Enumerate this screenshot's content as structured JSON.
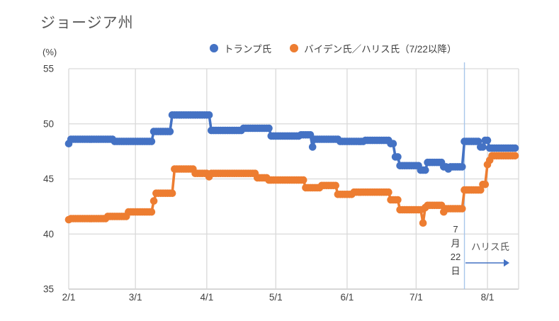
{
  "title": "ジョージア州",
  "y_axis_unit": "(%)",
  "legend": {
    "items": [
      {
        "label": "トランプ氏",
        "color": "#4472C4"
      },
      {
        "label": "バイデン氏／ハリス氏（7/22以降）",
        "color": "#ED7D31"
      }
    ]
  },
  "annotation": {
    "event_date_lines": [
      "7",
      "月",
      "22",
      "日"
    ],
    "label": "ハリス氏",
    "arrow_color": "#4472C4"
  },
  "colors": {
    "trump": "#4472C4",
    "biden_harris": "#ED7D31",
    "gridline": "#D9D9D9",
    "axis_line": "#BFBFBF",
    "event_line": "#A8C6EA",
    "tick_text": "#404040",
    "title_text": "#595959"
  },
  "chart_data": {
    "type": "line",
    "title": "ジョージア州",
    "ylabel": "(%)",
    "grid": true,
    "legend_position": "top",
    "y_axis": {
      "ticks": [
        35,
        40,
        45,
        50,
        55
      ],
      "range": [
        35,
        55
      ],
      "unit": "%"
    },
    "x_axis": {
      "tick_labels": [
        "2/1",
        "3/1",
        "4/1",
        "5/1",
        "6/1",
        "7/1",
        "8/1"
      ],
      "start_date": "2/1",
      "end_date": "8/13",
      "month_start_days": [
        0,
        29,
        60,
        90,
        121,
        151,
        182
      ]
    },
    "event_line": {
      "date": "7/22",
      "day": 172,
      "color": "#A8C6EA"
    },
    "interpolation": "daily-step-from-breakpoints",
    "series": [
      {
        "name": "トランプ氏",
        "color": "#4472C4",
        "breakpoints": [
          [
            "2/1",
            48.2
          ],
          [
            "2/2",
            48.6
          ],
          [
            "2/21",
            48.4
          ],
          [
            "3/9",
            49.3
          ],
          [
            "3/17",
            50.8
          ],
          [
            "4/3",
            49.4
          ],
          [
            "4/17",
            49.6
          ],
          [
            "4/29",
            48.9
          ],
          [
            "5/12",
            49.0
          ],
          [
            "5/17",
            47.9
          ],
          [
            "5/18",
            48.6
          ],
          [
            "5/29",
            48.4
          ],
          [
            "6/9",
            48.5
          ],
          [
            "6/20",
            48.2
          ],
          [
            "6/22",
            47.0
          ],
          [
            "6/24",
            46.2
          ],
          [
            "7/3",
            45.8
          ],
          [
            "7/6",
            46.5
          ],
          [
            "7/13",
            46.1
          ],
          [
            "7/15",
            45.9
          ],
          [
            "7/16",
            46.1
          ],
          [
            "7/22",
            48.4
          ],
          [
            "7/29",
            47.9
          ],
          [
            "7/31",
            48.5
          ],
          [
            "8/2",
            47.8
          ],
          [
            "8/13",
            47.8
          ]
        ]
      },
      {
        "name": "バイデン氏／ハリス氏（7/22以降）",
        "color": "#ED7D31",
        "breakpoints": [
          [
            "2/1",
            41.3
          ],
          [
            "2/2",
            41.4
          ],
          [
            "2/18",
            41.6
          ],
          [
            "2/27",
            42.0
          ],
          [
            "3/9",
            43.0
          ],
          [
            "3/10",
            43.7
          ],
          [
            "3/18",
            45.9
          ],
          [
            "3/27",
            45.5
          ],
          [
            "4/2",
            45.2
          ],
          [
            "4/3",
            45.5
          ],
          [
            "4/23",
            45.1
          ],
          [
            "4/28",
            44.9
          ],
          [
            "5/14",
            44.2
          ],
          [
            "5/21",
            44.4
          ],
          [
            "5/28",
            43.6
          ],
          [
            "6/4",
            43.8
          ],
          [
            "6/20",
            43.1
          ],
          [
            "6/24",
            42.2
          ],
          [
            "7/4",
            41.0
          ],
          [
            "7/5",
            42.4
          ],
          [
            "7/6",
            42.6
          ],
          [
            "7/13",
            42.0
          ],
          [
            "7/14",
            42.3
          ],
          [
            "7/22",
            44.0
          ],
          [
            "7/30",
            44.5
          ],
          [
            "8/1",
            46.3
          ],
          [
            "8/2",
            46.7
          ],
          [
            "8/3",
            47.1
          ],
          [
            "8/13",
            47.1
          ]
        ]
      }
    ]
  }
}
